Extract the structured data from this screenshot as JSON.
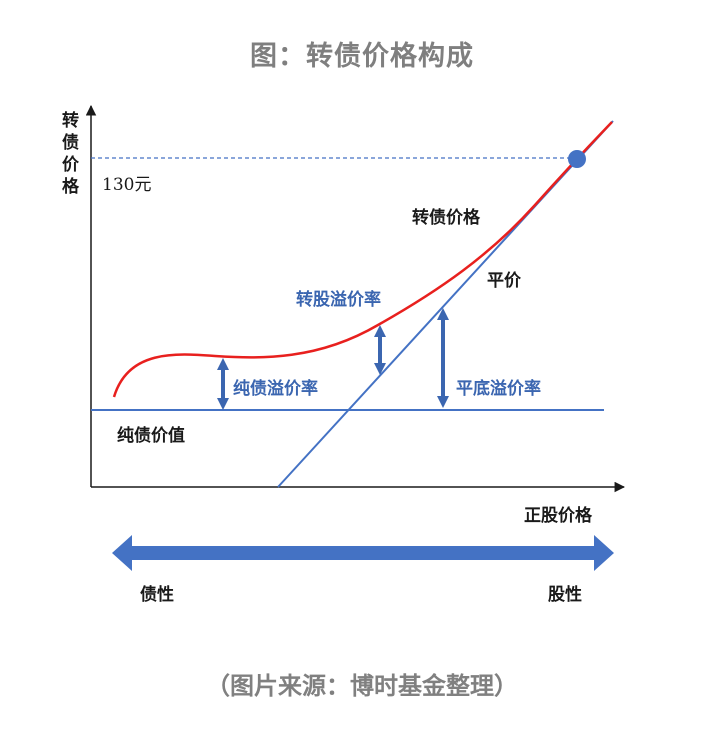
{
  "title": "图：转债价格构成",
  "source": "（图片来源：博时基金整理）",
  "diagram": {
    "y_axis_label": "转债价格",
    "x_axis_label": "正股价格",
    "reference_level": "130元",
    "curve_label": "转债价格",
    "parity_label": "平价",
    "bond_floor_label": "纯债价值",
    "conversion_premium_label": "转股溢价率",
    "bond_premium_label": "纯债溢价率",
    "parity_premium_label": "平底溢价率",
    "left_pole": "债性",
    "right_pole": "股性"
  },
  "colors": {
    "curve": "#e8201e",
    "blue": "#4472c4",
    "dark_blue": "#3b66b0",
    "text": "#1a1a1a",
    "title": "#7f7f7f"
  }
}
